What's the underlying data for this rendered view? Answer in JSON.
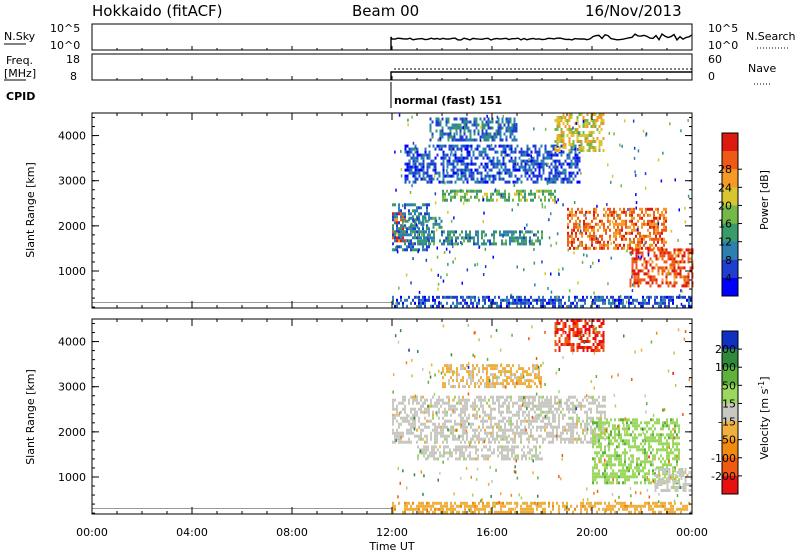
{
  "header": {
    "station": "Hokkaido (fitACF)",
    "beam": "Beam 00",
    "date": "16/Nov/2013"
  },
  "top_panels": {
    "nsky_label": "N.Sky",
    "nsky_ticks": [
      "10^5",
      "10^0"
    ],
    "nsearch_label": "N.Search",
    "nsearch_ticks": [
      "10^5",
      "10^0"
    ],
    "freq_label_1": "Freq.",
    "freq_label_2": "[MHz]",
    "freq_ticks": [
      "18",
      "8"
    ],
    "nave_label": "Nave",
    "nave_ticks": [
      "60",
      "0"
    ],
    "cpid_label": "CPID",
    "cpid_value": "normal (fast) 151"
  },
  "chart_data": [
    {
      "type": "heatmap",
      "title": "",
      "xlabel": "Time UT",
      "ylabel": "Slant Range [km]",
      "x_ticks": [
        "00:00",
        "04:00",
        "08:00",
        "12:00",
        "16:00",
        "20:00",
        "00:00"
      ],
      "x_range_hours": [
        0,
        24
      ],
      "y_ticks": [
        1000,
        2000,
        3000,
        4000
      ],
      "ylim": [
        180,
        4500
      ],
      "colorbar": {
        "label": "Power [dB]",
        "ticks": [
          "4",
          "8",
          "12",
          "16",
          "20",
          "24",
          "28"
        ],
        "range": [
          0,
          30
        ],
        "colors": [
          "#0000ff",
          "#1f3fd0",
          "#2d7fb0",
          "#3a9a6a",
          "#74b84a",
          "#d7c531",
          "#f59a25",
          "#ee5a16",
          "#dd1a10"
        ]
      },
      "data_start_hour": 12.0,
      "echo_regions": [
        {
          "hours": [
            12.0,
            12.5
          ],
          "range_km": [
            1700,
            2300
          ],
          "level": 26
        },
        {
          "hours": [
            12.0,
            13.5
          ],
          "range_km": [
            1500,
            2500
          ],
          "level": 8
        },
        {
          "hours": [
            12.5,
            14.0
          ],
          "range_km": [
            2000,
            2200
          ],
          "level": 10
        },
        {
          "hours": [
            14.0,
            18.5
          ],
          "range_km": [
            2550,
            2800
          ],
          "level": 14
        },
        {
          "hours": [
            13.0,
            18.0
          ],
          "range_km": [
            1600,
            1900
          ],
          "level": 10
        },
        {
          "hours": [
            12.5,
            19.5
          ],
          "range_km": [
            3000,
            3800
          ],
          "level": 6
        },
        {
          "hours": [
            13.5,
            17.0
          ],
          "range_km": [
            3900,
            4400
          ],
          "level": 8
        },
        {
          "hours": [
            18.5,
            20.5
          ],
          "range_km": [
            3700,
            4500
          ],
          "level": 18
        },
        {
          "hours": [
            19.0,
            23.0
          ],
          "range_km": [
            1500,
            2400
          ],
          "level": 24
        },
        {
          "hours": [
            21.5,
            24.0
          ],
          "range_km": [
            700,
            1500
          ],
          "level": 26
        },
        {
          "hours": [
            12.0,
            24.0
          ],
          "range_km": [
            200,
            450
          ],
          "level": 6
        }
      ]
    },
    {
      "type": "heatmap",
      "title": "",
      "xlabel": "Time UT",
      "ylabel": "Slant Range [km]",
      "x_ticks": [
        "00:00",
        "04:00",
        "08:00",
        "12:00",
        "16:00",
        "20:00",
        "00:00"
      ],
      "x_range_hours": [
        0,
        24
      ],
      "y_ticks": [
        1000,
        2000,
        3000,
        4000
      ],
      "ylim": [
        180,
        4500
      ],
      "colorbar": {
        "label": "Velocity [m s",
        "label_sup": "-1",
        "label_end": "]",
        "ticks": [
          "200",
          "100",
          "50",
          "15",
          "-15",
          "-50",
          "-100",
          "-200"
        ],
        "range": [
          -250,
          250
        ],
        "colors": [
          "#1030c0",
          "#2e8a3a",
          "#5fb03c",
          "#9bd860",
          "#c8c8c0",
          "#f0b040",
          "#f08a10",
          "#f05a10",
          "#e81010"
        ]
      },
      "data_start_hour": 12.0,
      "echo_regions": [
        {
          "hours": [
            12.0,
            20.5
          ],
          "range_km": [
            1800,
            2800
          ],
          "velocity": 0
        },
        {
          "hours": [
            13.0,
            18.0
          ],
          "range_km": [
            1400,
            1700
          ],
          "velocity": 0
        },
        {
          "hours": [
            14.0,
            18.0
          ],
          "range_km": [
            3000,
            3500
          ],
          "velocity": -40
        },
        {
          "hours": [
            18.5,
            20.5
          ],
          "range_km": [
            3800,
            4500
          ],
          "velocity": -200
        },
        {
          "hours": [
            20.0,
            23.5
          ],
          "range_km": [
            900,
            2300
          ],
          "velocity": 60
        },
        {
          "hours": [
            12.0,
            24.0
          ],
          "range_km": [
            200,
            450
          ],
          "velocity": -60
        },
        {
          "hours": [
            22.5,
            24.0
          ],
          "range_km": [
            700,
            1200
          ],
          "velocity": 0
        }
      ]
    }
  ]
}
